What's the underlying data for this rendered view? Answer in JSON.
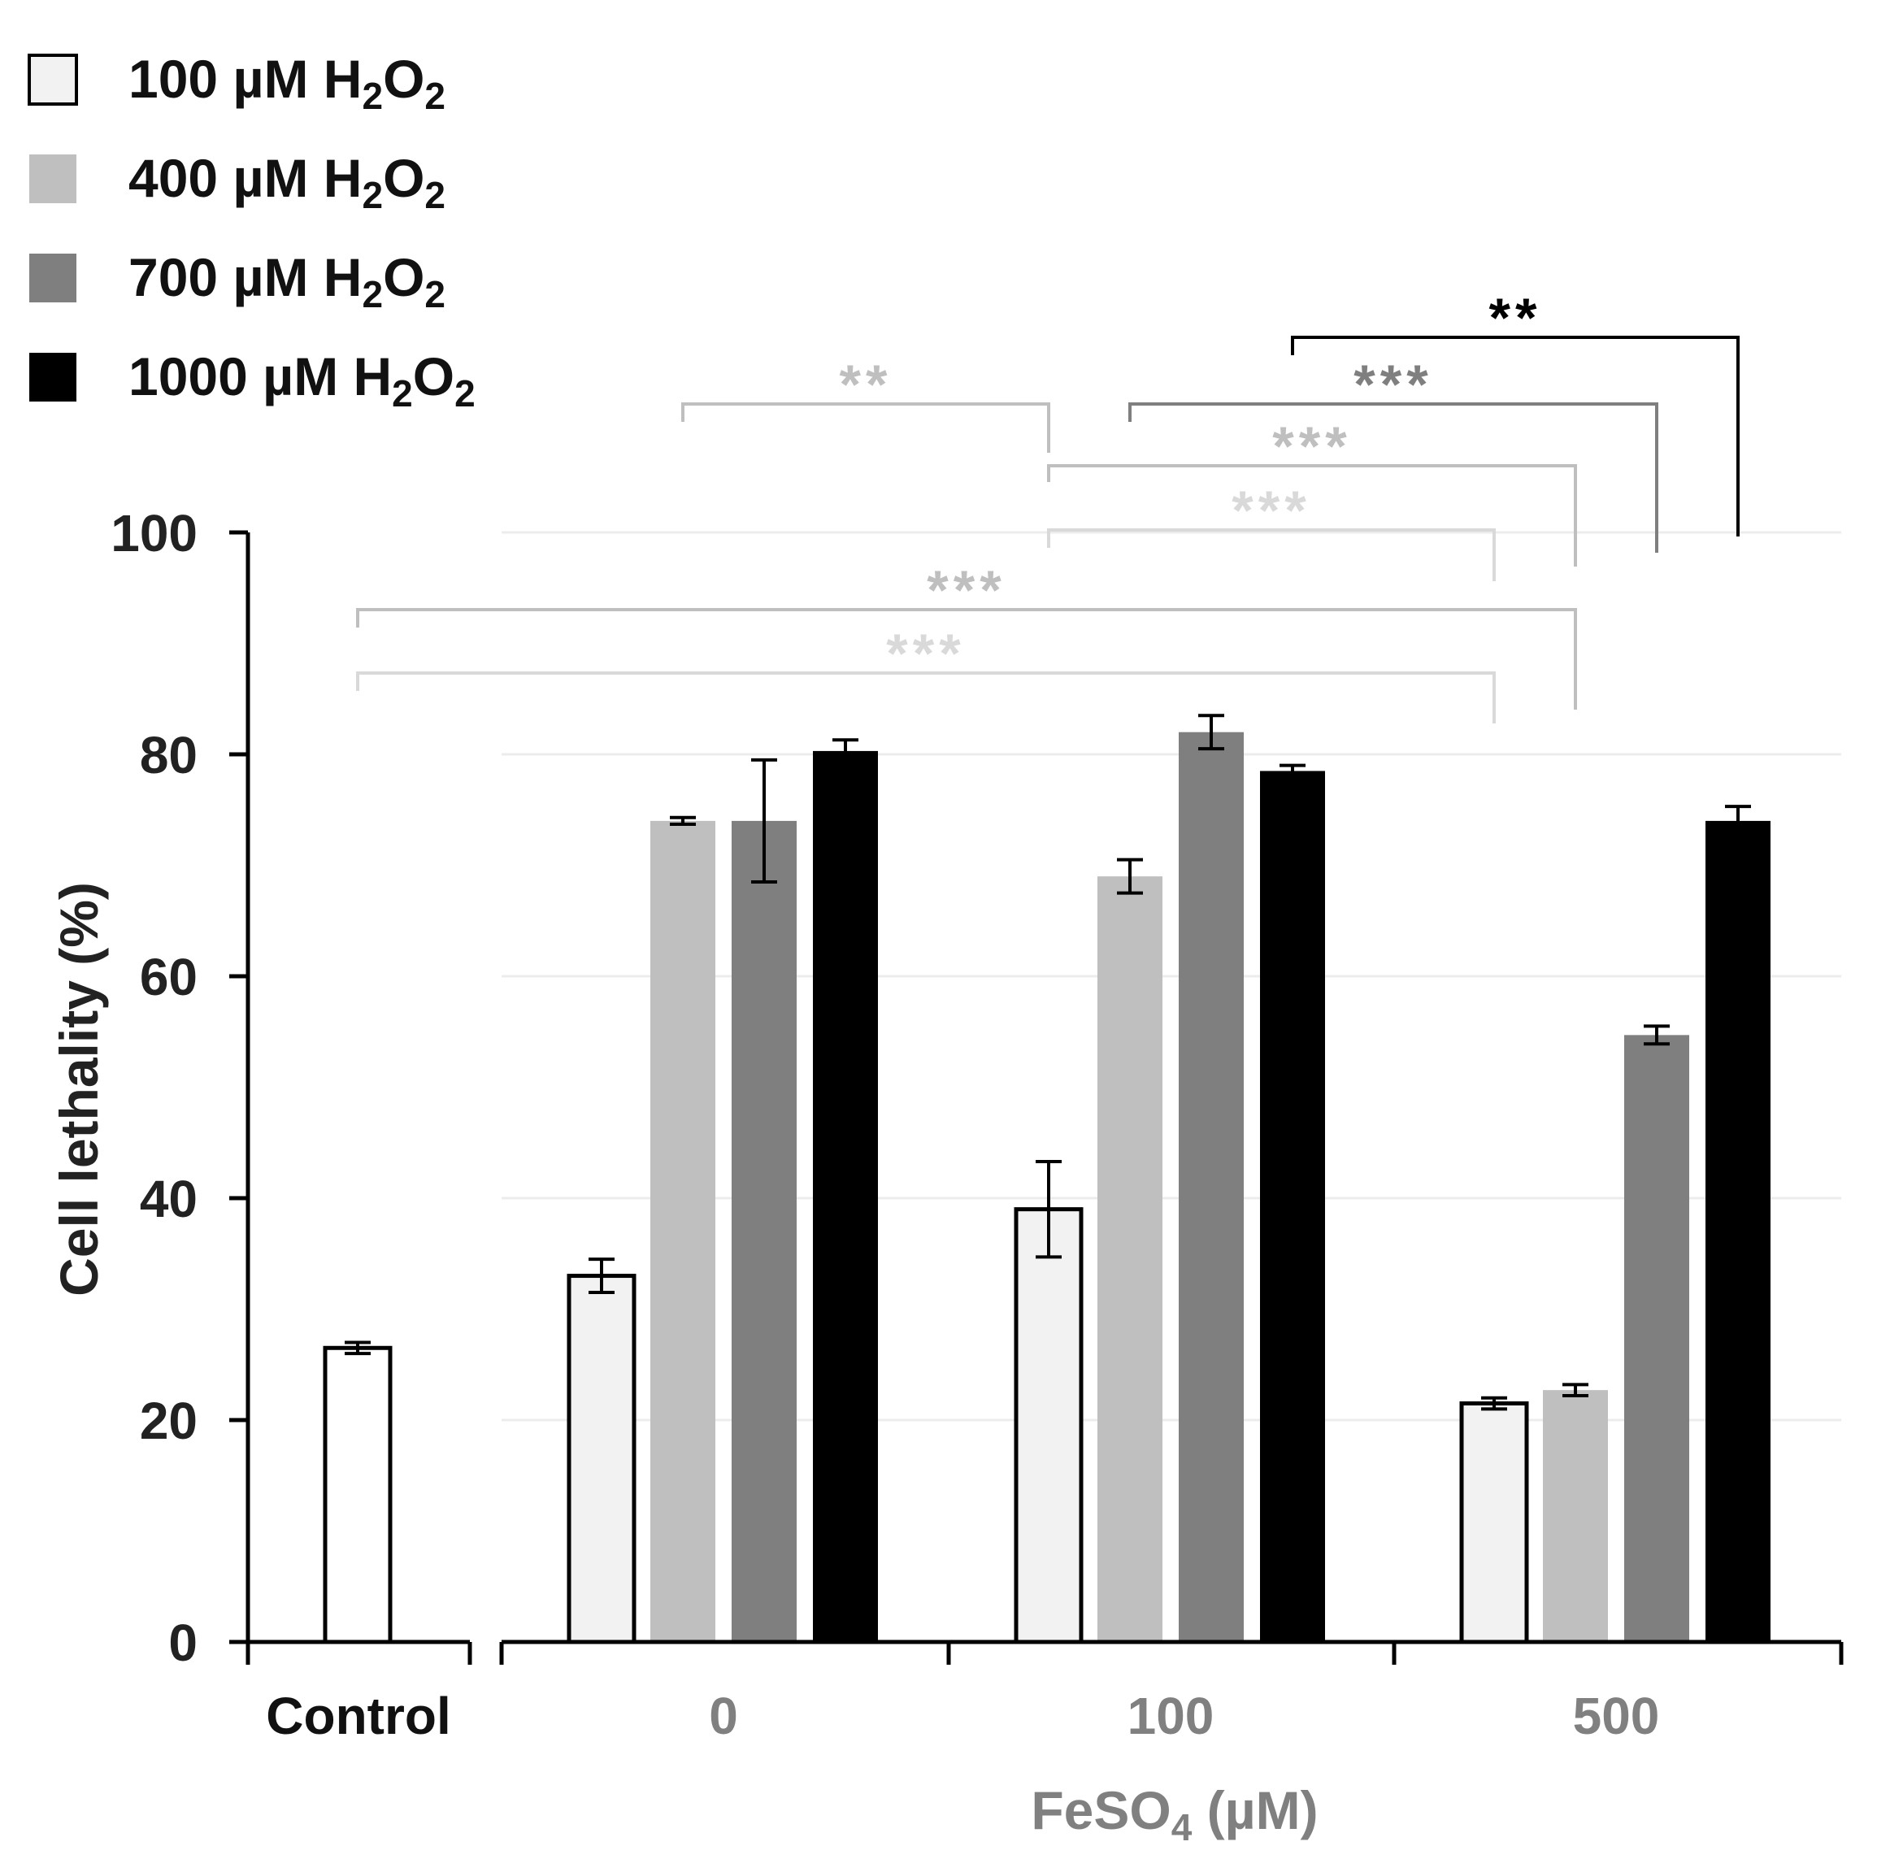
{
  "chart_data": {
    "type": "bar",
    "ylabel": "Cell lethality (%)",
    "ylim": [
      0,
      100
    ],
    "yticks": [
      0,
      20,
      40,
      60,
      80,
      100
    ],
    "grid": true,
    "xlabel": {
      "main": "FeSO",
      "sub": "4",
      "tail": " (µM)"
    },
    "control": {
      "label": "Control",
      "value": 26.5,
      "error": 0.5
    },
    "categories": [
      "0",
      "100",
      "500"
    ],
    "series": [
      {
        "name": "100 µM H2O2",
        "value_label": "100 µM H",
        "values": [
          33.0,
          39.0,
          21.5
        ],
        "errors": [
          1.5,
          4.3,
          0.5
        ],
        "color": "#f2f2f2",
        "outline": true
      },
      {
        "name": "400 µM H2O2",
        "value_label": "400 µM H",
        "values": [
          74.0,
          69.0,
          22.7
        ],
        "errors": [
          0.3,
          1.5,
          0.5
        ],
        "color": "#bfbfbf",
        "outline": false
      },
      {
        "name": "700 µM H2O2",
        "value_label": "700 µM H",
        "values": [
          74.0,
          82.0,
          54.7
        ],
        "errors": [
          5.5,
          1.5,
          0.8
        ],
        "color": "#7f7f7f",
        "outline": false
      },
      {
        "name": "1000 µM H2O2",
        "value_label": "1000 µM H",
        "values": [
          80.3,
          78.5,
          74.0
        ],
        "errors": [
          1.0,
          0.5,
          1.3
        ],
        "color": "#000000",
        "outline": false
      }
    ],
    "legend": {
      "position": "top-left",
      "sub": "2",
      "o": "O"
    },
    "significance": [
      {
        "label": "**",
        "from": {
          "group": "0",
          "series": 1
        },
        "to": {
          "group": "100",
          "series": 0
        },
        "level": 1,
        "color": "#bfbfbf"
      },
      {
        "label": "***",
        "from": {
          "group": "100",
          "series": 1
        },
        "to": {
          "group": "500",
          "series": 2
        },
        "level": 2,
        "color": "#7f7f7f"
      },
      {
        "label": "**",
        "from": {
          "group": "100",
          "series": 3
        },
        "to": {
          "group": "500",
          "series": 3
        },
        "level": 3,
        "color": "#000000"
      },
      {
        "label": "***",
        "from": {
          "group": "100",
          "series": 0
        },
        "to": {
          "group": "500",
          "series": 1
        },
        "level": 4,
        "color": "#bfbfbf"
      },
      {
        "label": "***",
        "from": {
          "group": "100",
          "series": 0
        },
        "to": {
          "group": "500",
          "series": 0
        },
        "level": 5,
        "color": "#d9d9d9"
      },
      {
        "label": "***",
        "from": {
          "group": "control"
        },
        "to": {
          "group": "500",
          "series": 1
        },
        "level": 6,
        "color": "#bfbfbf"
      },
      {
        "label": "***",
        "from": {
          "group": "control"
        },
        "to": {
          "group": "500",
          "series": 0
        },
        "level": 7,
        "color": "#d9d9d9"
      }
    ]
  }
}
